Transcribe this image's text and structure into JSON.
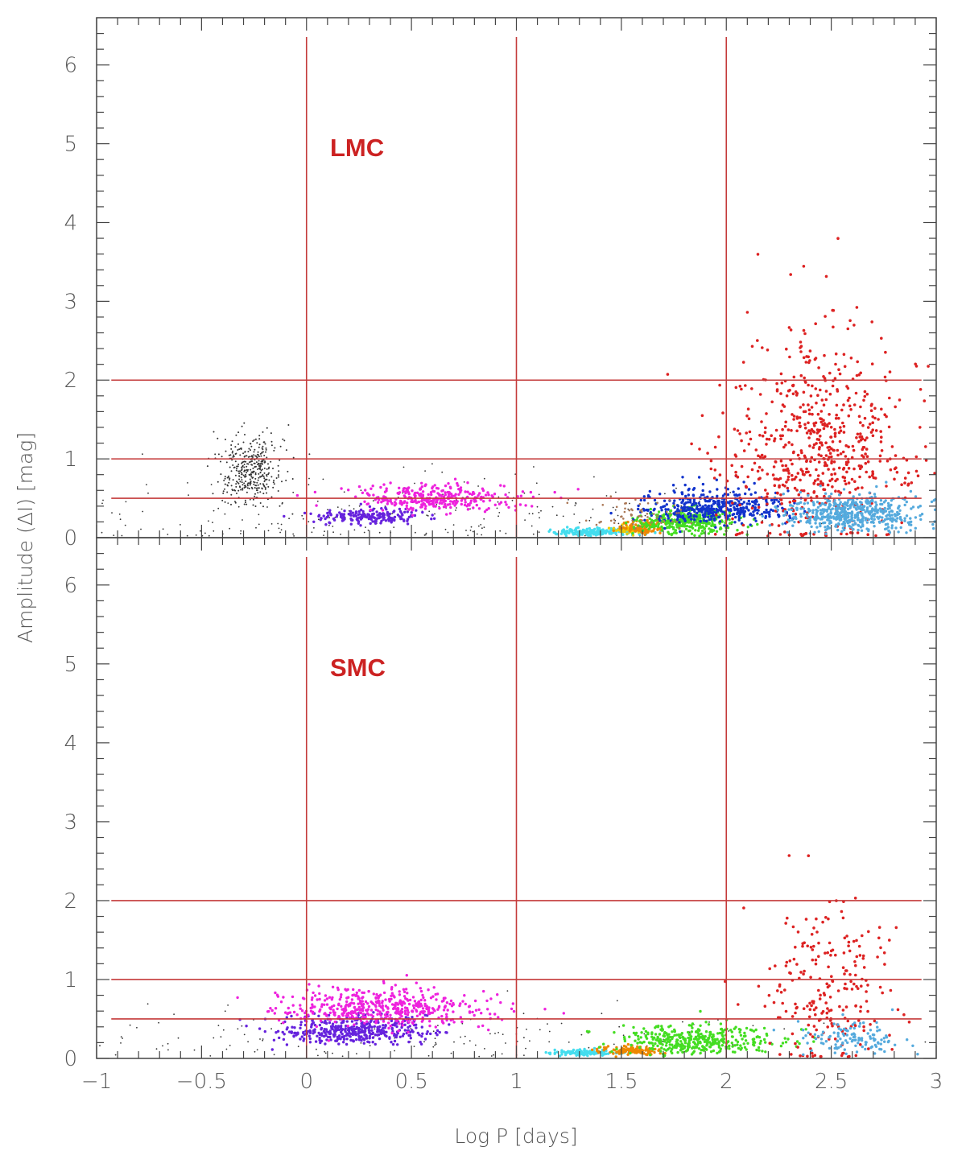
{
  "colors": {
    "ref_line": "#c43a3a",
    "panel_label": "#cc2222",
    "frame": "#444444",
    "black_dots": "#333333",
    "violet": "#6622dd",
    "magenta": "#ee22dd",
    "cyan": "#44ddee",
    "yellow": "#eecc00",
    "orange": "#ee8800",
    "green": "#44dd22",
    "blue": "#1133cc",
    "red": "#dd2222",
    "lightblue": "#55aadd",
    "brown": "#aa7755"
  },
  "chart_data": {
    "type": "scatter",
    "xlabel": "Log P [days]",
    "ylabel": "Amplitude (ΔI) [mag]",
    "xlim": [
      -1,
      3
    ],
    "ylim": [
      0,
      6.6
    ],
    "x_ticks": [
      "−1",
      "−0.5",
      "0",
      "0.5",
      "1",
      "1.5",
      "2",
      "2.5",
      "3"
    ],
    "x_tick_values": [
      -1,
      -0.5,
      0,
      0.5,
      1,
      1.5,
      2,
      2.5,
      3
    ],
    "y_ticks": [
      "0",
      "1",
      "2",
      "3",
      "4",
      "5",
      "6"
    ],
    "y_tick_values": [
      0,
      1,
      2,
      3,
      4,
      5,
      6
    ],
    "vertical_ref_lines": [
      0,
      1,
      2
    ],
    "horizontal_ref_lines": [
      0.5,
      1,
      2
    ],
    "grid": false,
    "panels": [
      {
        "label": "LMC",
        "point_groups": [
          {
            "color": "black_dots",
            "x_center": -0.27,
            "x_spread": 0.07,
            "y_center": 0.85,
            "y_spread": 0.25,
            "count": 380,
            "size": 1.0
          },
          {
            "color": "black_dots",
            "x_center": 0.4,
            "x_spread": 0.9,
            "y_center": 0.3,
            "y_spread": 0.25,
            "count": 260,
            "size": 0.9
          },
          {
            "color": "violet",
            "x_center": 0.3,
            "x_spread": 0.13,
            "y_center": 0.27,
            "y_spread": 0.05,
            "count": 180,
            "size": 1.7
          },
          {
            "color": "magenta",
            "x_center": 0.6,
            "x_spread": 0.2,
            "y_center": 0.5,
            "y_spread": 0.09,
            "count": 320,
            "size": 1.7
          },
          {
            "color": "cyan",
            "x_center": 1.38,
            "x_spread": 0.11,
            "y_center": 0.07,
            "y_spread": 0.025,
            "count": 220,
            "size": 1.7
          },
          {
            "color": "yellow",
            "x_center": 1.52,
            "x_spread": 0.03,
            "y_center": 0.1,
            "y_spread": 0.03,
            "count": 40,
            "size": 1.7
          },
          {
            "color": "orange",
            "x_center": 1.6,
            "x_spread": 0.05,
            "y_center": 0.12,
            "y_spread": 0.04,
            "count": 110,
            "size": 1.7
          },
          {
            "color": "green",
            "x_center": 1.82,
            "x_spread": 0.12,
            "y_center": 0.2,
            "y_spread": 0.09,
            "count": 360,
            "size": 1.7
          },
          {
            "color": "blue",
            "x_center": 1.95,
            "x_spread": 0.16,
            "y_center": 0.38,
            "y_spread": 0.12,
            "count": 420,
            "size": 1.7
          },
          {
            "color": "brown",
            "x_center": 1.6,
            "x_spread": 0.12,
            "y_center": 0.28,
            "y_spread": 0.1,
            "count": 60,
            "size": 1.3
          },
          {
            "color": "red",
            "x_center": 2.45,
            "x_spread": 0.22,
            "y_center": 1.15,
            "y_spread": 0.75,
            "count": 640,
            "size": 1.8
          },
          {
            "color": "lightblue",
            "x_center": 2.6,
            "x_spread": 0.16,
            "y_center": 0.3,
            "y_spread": 0.13,
            "count": 520,
            "size": 1.7
          }
        ]
      },
      {
        "label": "SMC",
        "point_groups": [
          {
            "color": "black_dots",
            "x_center": 0.5,
            "x_spread": 1.0,
            "y_center": 0.25,
            "y_spread": 0.2,
            "count": 160,
            "size": 0.9
          },
          {
            "color": "violet",
            "x_center": 0.25,
            "x_spread": 0.2,
            "y_center": 0.35,
            "y_spread": 0.1,
            "count": 420,
            "size": 1.7
          },
          {
            "color": "magenta",
            "x_center": 0.35,
            "x_spread": 0.25,
            "y_center": 0.62,
            "y_spread": 0.14,
            "count": 480,
            "size": 1.7
          },
          {
            "color": "cyan",
            "x_center": 1.32,
            "x_spread": 0.07,
            "y_center": 0.07,
            "y_spread": 0.02,
            "count": 120,
            "size": 1.7
          },
          {
            "color": "orange",
            "x_center": 1.55,
            "x_spread": 0.07,
            "y_center": 0.1,
            "y_spread": 0.03,
            "count": 120,
            "size": 1.7
          },
          {
            "color": "green",
            "x_center": 1.85,
            "x_spread": 0.18,
            "y_center": 0.22,
            "y_spread": 0.1,
            "count": 400,
            "size": 1.7
          },
          {
            "color": "red",
            "x_center": 2.5,
            "x_spread": 0.15,
            "y_center": 0.8,
            "y_spread": 0.6,
            "count": 230,
            "size": 1.8
          },
          {
            "color": "lightblue",
            "x_center": 2.6,
            "x_spread": 0.12,
            "y_center": 0.25,
            "y_spread": 0.12,
            "count": 120,
            "size": 1.7
          }
        ]
      }
    ]
  }
}
